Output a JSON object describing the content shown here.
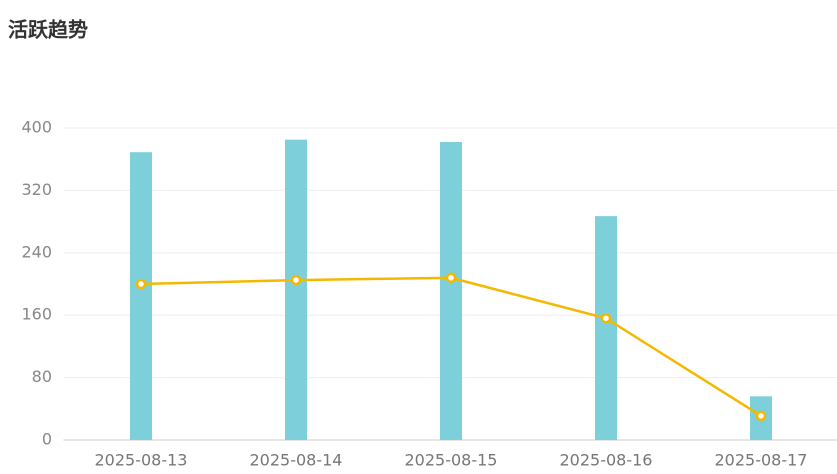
{
  "chart_data": {
    "type": "bar",
    "title": "活跃趋势",
    "categories": [
      "2025-08-13",
      "2025-08-14",
      "2025-08-15",
      "2025-08-16",
      "2025-08-17"
    ],
    "series": [
      {
        "type": "bar",
        "color": "#7dd0d9",
        "values": [
          369,
          385,
          382,
          287,
          56
        ]
      },
      {
        "type": "line",
        "color": "#f5b800",
        "values": [
          200,
          205,
          208,
          156,
          31
        ]
      }
    ],
    "ylim": [
      0,
      400
    ],
    "yticks": [
      0,
      80,
      160,
      240,
      320,
      400
    ],
    "grid": true
  }
}
